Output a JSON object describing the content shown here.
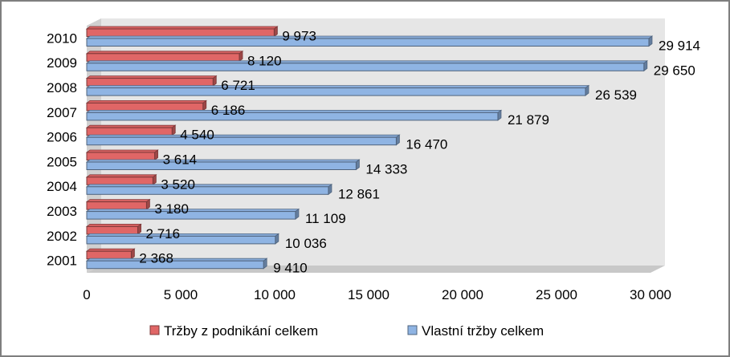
{
  "chart_data": {
    "type": "bar",
    "orientation": "horizontal",
    "style": "3d",
    "categories": [
      "2001",
      "2002",
      "2003",
      "2004",
      "2005",
      "2006",
      "2007",
      "2008",
      "2009",
      "2010"
    ],
    "series": [
      {
        "name": "Tržby z podnikání celkem",
        "color": "#e06666",
        "values": [
          2368,
          2716,
          3180,
          3520,
          3614,
          4540,
          6186,
          6721,
          8120,
          9973
        ],
        "labels": [
          "2 368",
          "2 716",
          "3 180",
          "3 520",
          "3 614",
          "4 540",
          "6 186",
          "6 721",
          "8 120",
          "9 973"
        ]
      },
      {
        "name": "Vlastní tržby celkem",
        "color": "#8fb4e3",
        "values": [
          9410,
          10036,
          11109,
          12861,
          14333,
          16470,
          21879,
          26539,
          29650,
          29914
        ],
        "labels": [
          "9 410",
          "10 036",
          "11 109",
          "12 861",
          "14 333",
          "16 470",
          "21 879",
          "26 539",
          "29 650",
          "29 914"
        ]
      }
    ],
    "xlim": [
      0,
      30000
    ],
    "xticks": [
      0,
      5000,
      10000,
      15000,
      20000,
      25000,
      30000
    ],
    "xtick_labels": [
      "0",
      "5 000",
      "10 000",
      "15 000",
      "20 000",
      "25 000",
      "30 000"
    ],
    "title": "",
    "xlabel": "",
    "ylabel": "",
    "grid": false,
    "legend_position": "bottom"
  }
}
